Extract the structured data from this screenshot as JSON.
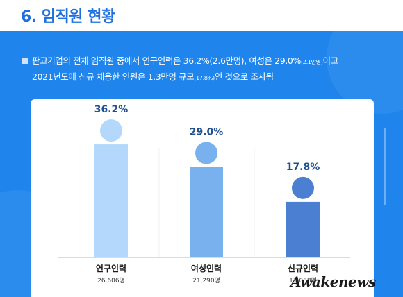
{
  "page": {
    "title": "6. 임직원 현황",
    "description": {
      "line1_main": "판교기업의 전체 임직원 중에서 연구인력은 36.2%(2.6만명), 여성은 29.0%",
      "line1_small": "(2.1만명)",
      "line1_end": "이고",
      "line2_main": "2021년도에 신규 채용한 인원은 1.3만명 규모",
      "line2_small": "(17.8%)",
      "line2_end": "인 것으로 조사됨"
    },
    "watermark": "Awakenews"
  },
  "colors": {
    "header_title": "#1e6fe0",
    "panel_bg": "#1f85ec",
    "bar_research": "#b3d8fb",
    "bar_women": "#79b1ee",
    "bar_new": "#4b7fd1",
    "value_label": "#1f4f8e"
  },
  "chart_data": {
    "type": "bar",
    "categories": [
      "연구인력",
      "여성인력",
      "신규인력"
    ],
    "values": [
      36.2,
      29.0,
      17.8
    ],
    "value_labels": [
      "36.2%",
      "29.0%",
      "17.8%"
    ],
    "counts": [
      "26,606명",
      "21,290명",
      "13,088명"
    ],
    "ylim": [
      0,
      40
    ],
    "grid": false,
    "legend": "none"
  }
}
